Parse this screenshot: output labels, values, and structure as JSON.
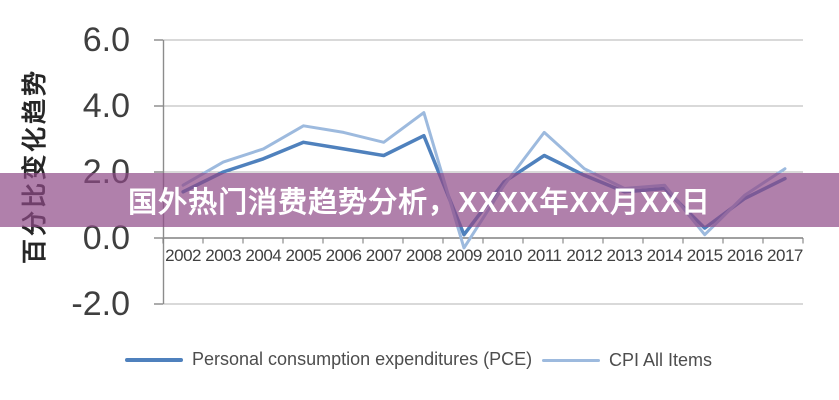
{
  "banner": {
    "title": "国外热门消费趋势分析，XXXX年XX月XX日",
    "bg_color": "#8f4a88",
    "bg_rgba": "rgba(143,74,136,0.70)",
    "text_color": "#ffffff"
  },
  "chart_data": {
    "type": "line",
    "title": "",
    "xlabel": "",
    "ylabel": "百分比变化趋势",
    "grid": true,
    "legend_position": "bottom",
    "ylim": [
      -2,
      6
    ],
    "y_ticks": [
      "6.0",
      "4.0",
      "2.0",
      "0.0",
      "-2.0"
    ],
    "y_tick_values": [
      6,
      4,
      2,
      0,
      -2
    ],
    "categories": [
      "2002",
      "2003",
      "2004",
      "2005",
      "2006",
      "2007",
      "2008",
      "2009",
      "2010",
      "2011",
      "2012",
      "2013",
      "2014",
      "2015",
      "2016",
      "2017"
    ],
    "series": [
      {
        "name": "Personal consumption expenditures (PCE)",
        "color": "#4f81bd",
        "stroke_width": 3.5,
        "values": [
          1.4,
          2.0,
          2.4,
          2.9,
          2.7,
          2.5,
          3.1,
          0.1,
          1.7,
          2.5,
          1.9,
          1.4,
          1.5,
          0.3,
          1.2,
          1.8
        ]
      },
      {
        "name": "CPI All Items",
        "color": "#9dbade",
        "stroke_width": 3,
        "values": [
          1.6,
          2.3,
          2.7,
          3.4,
          3.2,
          2.9,
          3.8,
          -0.3,
          1.6,
          3.2,
          2.1,
          1.5,
          1.6,
          0.1,
          1.3,
          2.1
        ]
      }
    ],
    "style": {
      "gridline_color": "#b3b3b3",
      "axis_color": "#808080",
      "y_label_color": "#3f3f3f",
      "x_label_color": "#404040",
      "legend_text_color": "#4d4d4d"
    }
  }
}
